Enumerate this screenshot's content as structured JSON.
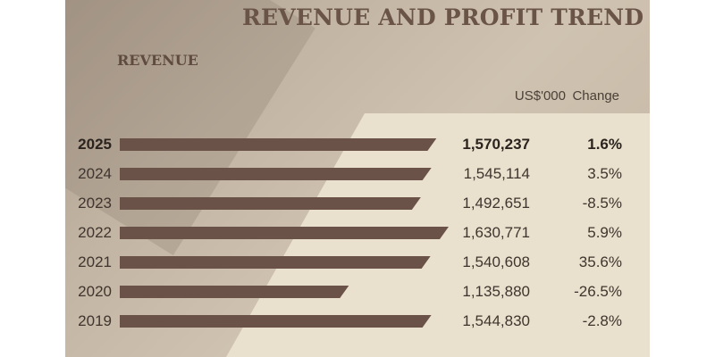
{
  "title": "REVENUE AND PROFIT TREND",
  "subtitle": "REVENUE",
  "columns": {
    "value": "US$'000",
    "change": "Change"
  },
  "colors": {
    "bar": "#6b5248",
    "text": "#3f352e",
    "title": "#6a5448"
  },
  "chart_data": {
    "type": "bar",
    "orientation": "horizontal",
    "categories": [
      "2025",
      "2024",
      "2023",
      "2022",
      "2021",
      "2020",
      "2019"
    ],
    "values": [
      1570237,
      1545114,
      1492651,
      1630771,
      1540608,
      1135880,
      1544830
    ],
    "value_labels": [
      "1,570,237",
      "1,545,114",
      "1,492,651",
      "1,630,771",
      "1,540,608",
      "1,135,880",
      "1,544,830"
    ],
    "changes": [
      "1.6%",
      "3.5%",
      "-8.5%",
      "5.9%",
      "35.6%",
      "-26.5%",
      "-2.8%"
    ],
    "title": "REVENUE",
    "xlabel": "",
    "ylabel": "",
    "unit": "US$'000",
    "highlight": "2025",
    "grid": false
  }
}
